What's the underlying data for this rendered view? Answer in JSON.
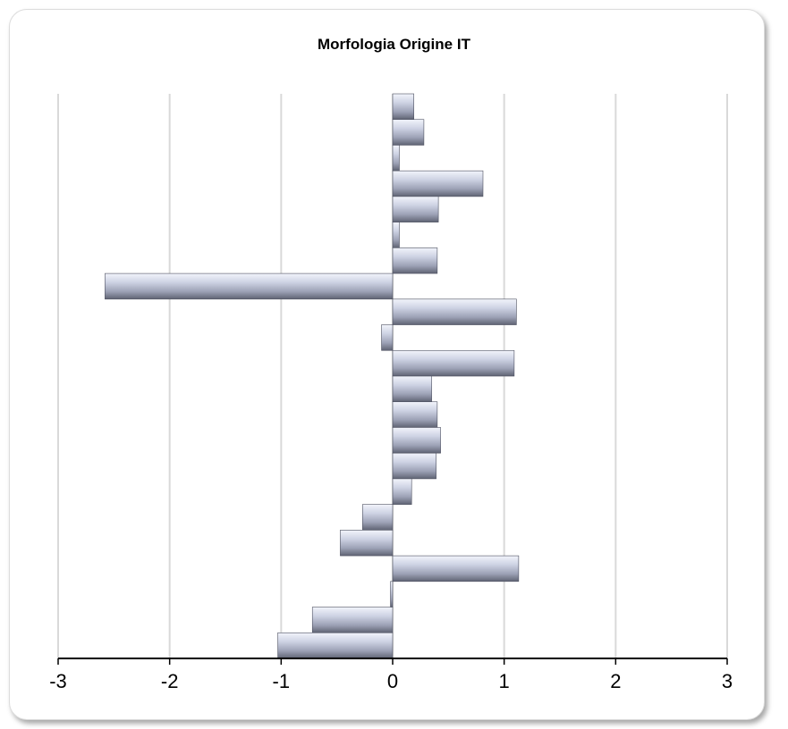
{
  "chart_data": {
    "type": "bar",
    "orientation": "horizontal",
    "title": "Morfologia Origine IT",
    "xlabel": "",
    "ylabel": "",
    "xlim": [
      -3,
      3
    ],
    "x_ticks": [
      "-3",
      "-2",
      "-1",
      "0",
      "1",
      "2",
      "3"
    ],
    "grid": true,
    "legend": "none",
    "bar_color": "#a9aec4",
    "series": [
      {
        "values": [
          0.19,
          0.28,
          0.06,
          0.81,
          0.41,
          0.06,
          0.4,
          -2.58,
          1.11,
          -0.1,
          1.09,
          0.35,
          0.4,
          0.43,
          0.39,
          0.17,
          -0.27,
          -0.47,
          1.13,
          -0.02,
          -0.72,
          -1.03
        ]
      }
    ]
  }
}
